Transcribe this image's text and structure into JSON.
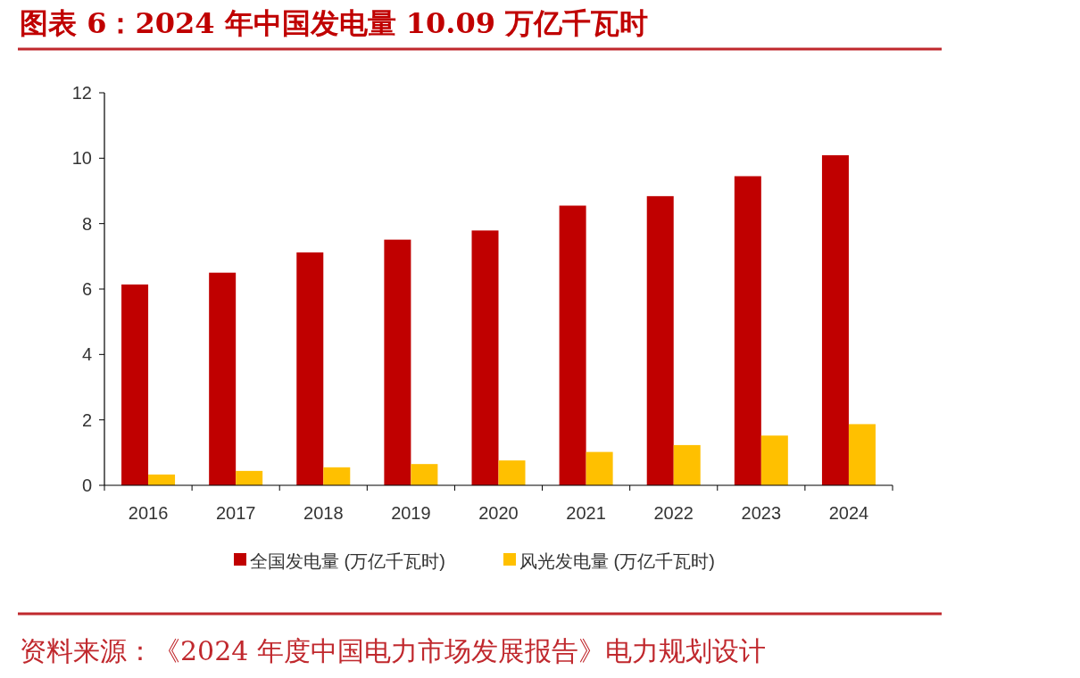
{
  "chart_data": {
    "type": "bar",
    "title": "图表 6：2024 年中国发电量 10.09 万亿千瓦时",
    "categories": [
      "2016",
      "2017",
      "2018",
      "2019",
      "2020",
      "2021",
      "2022",
      "2023",
      "2024"
    ],
    "series": [
      {
        "name": "全国发电量 (万亿千瓦时)",
        "color": "#c00000",
        "values": [
          6.14,
          6.5,
          7.12,
          7.51,
          7.79,
          8.55,
          8.84,
          9.45,
          10.09
        ]
      },
      {
        "name": "风光发电量 (万亿千瓦时)",
        "color": "#ffc000",
        "values": [
          0.33,
          0.44,
          0.55,
          0.65,
          0.76,
          1.02,
          1.23,
          1.52,
          1.87
        ]
      }
    ],
    "ylim": [
      0,
      12
    ],
    "yticks": [
      0,
      2,
      4,
      6,
      8,
      10,
      12
    ],
    "legend": "bottom",
    "annotations": [
      "资料来源：《2024 年度中国电力市场发展报告》电力规划设计"
    ]
  }
}
